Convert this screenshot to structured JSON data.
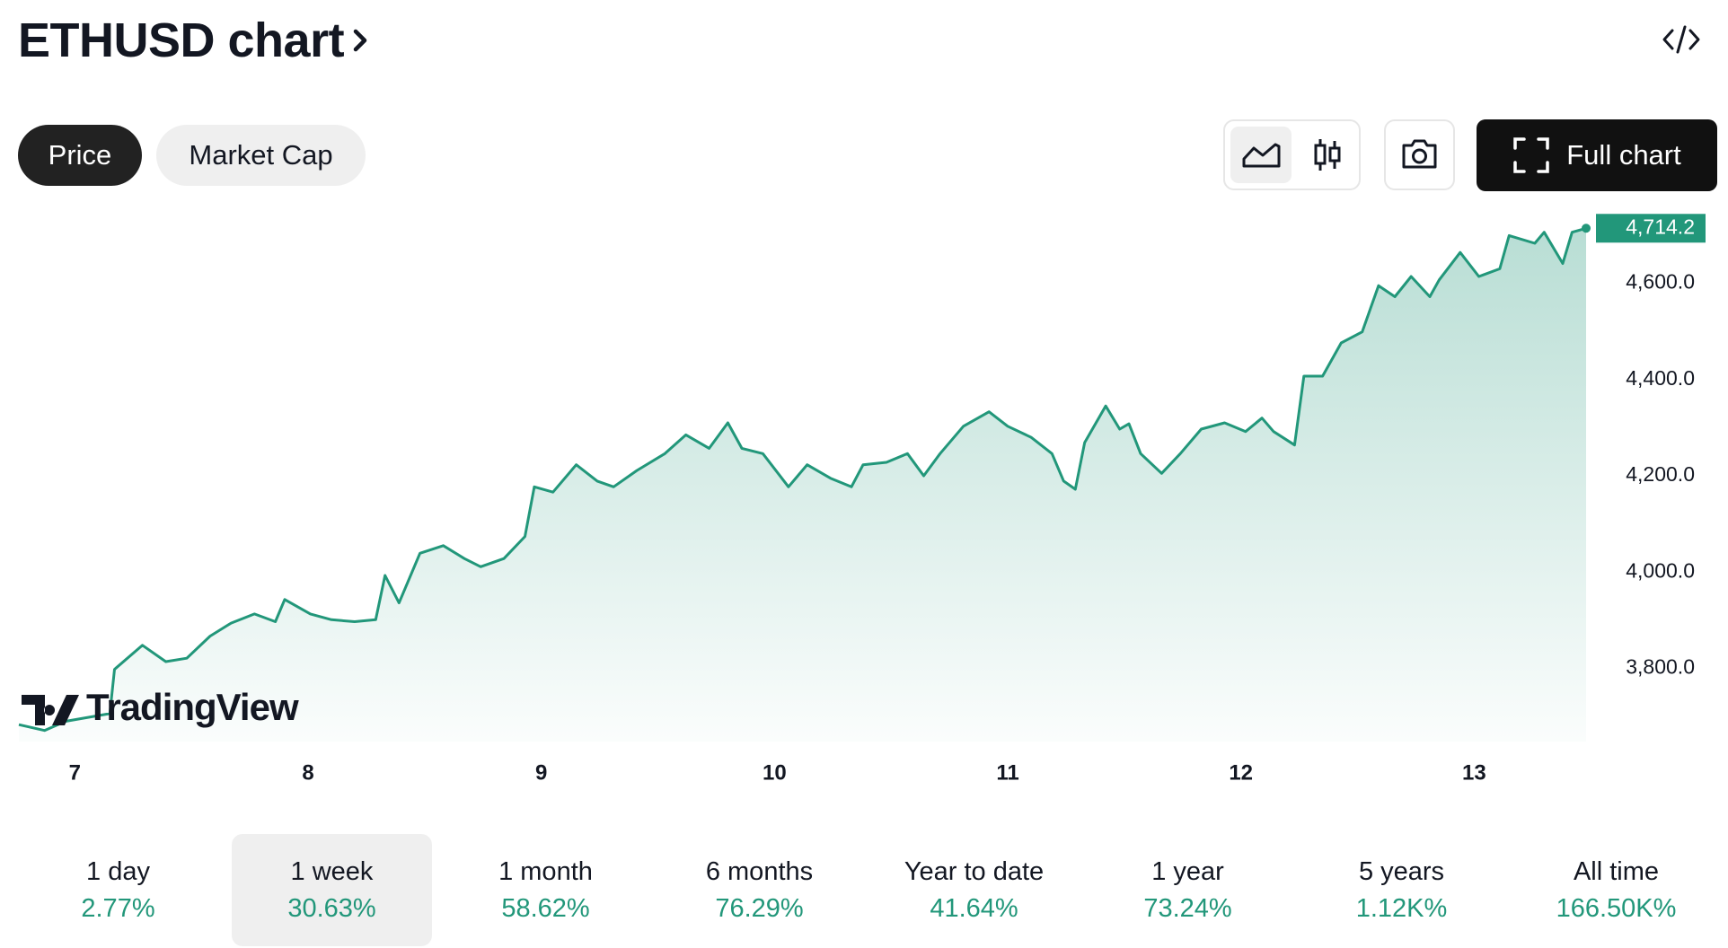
{
  "header": {
    "title": "ETHUSD chart"
  },
  "tabs": [
    "Price",
    "Market Cap"
  ],
  "full_chart": "Full chart",
  "chart_data": {
    "type": "area",
    "watermark": "TradingView",
    "color": "#22977a",
    "x": [
      6.76,
      6.87,
      6.96,
      7.15,
      7.17,
      7.29,
      7.39,
      7.48,
      7.58,
      7.67,
      7.77,
      7.86,
      7.9,
      8.01,
      8.1,
      8.2,
      8.29,
      8.33,
      8.39,
      8.48,
      8.58,
      8.67,
      8.74,
      8.84,
      8.93,
      8.97,
      9.05,
      9.15,
      9.24,
      9.31,
      9.41,
      9.53,
      9.62,
      9.72,
      9.8,
      9.86,
      9.95,
      10.06,
      10.14,
      10.24,
      10.33,
      10.38,
      10.48,
      10.57,
      10.64,
      10.71,
      10.81,
      10.92,
      11.0,
      11.1,
      11.19,
      11.24,
      11.29,
      11.33,
      11.42,
      11.48,
      11.52,
      11.57,
      11.66,
      11.74,
      11.83,
      11.93,
      12.02,
      12.09,
      12.14,
      12.23,
      12.27,
      12.35,
      12.43,
      12.52,
      12.59,
      12.66,
      12.73,
      12.81,
      12.85,
      12.94,
      13.02,
      13.11,
      13.15,
      13.26,
      13.3,
      13.38,
      13.42,
      13.48
    ],
    "values": [
      3683,
      3671,
      3690,
      3706,
      3798,
      3848,
      3814,
      3821,
      3867,
      3894,
      3913,
      3897,
      3943,
      3913,
      3901,
      3897,
      3901,
      3993,
      3936,
      4039,
      4055,
      4028,
      4011,
      4028,
      4074,
      4177,
      4166,
      4223,
      4189,
      4177,
      4211,
      4246,
      4285,
      4257,
      4310,
      4257,
      4246,
      4177,
      4223,
      4195,
      4177,
      4223,
      4228,
      4246,
      4200,
      4246,
      4303,
      4333,
      4303,
      4280,
      4246,
      4189,
      4172,
      4269,
      4345,
      4297,
      4308,
      4246,
      4205,
      4246,
      4297,
      4310,
      4292,
      4320,
      4292,
      4264,
      4407,
      4407,
      4476,
      4499,
      4595,
      4572,
      4614,
      4572,
      4607,
      4664,
      4614,
      4630,
      4699,
      4683,
      4706,
      4641,
      4706,
      4714.2
    ],
    "value_labels": [
      null,
      null,
      null,
      null,
      null,
      null,
      null,
      null,
      null,
      null,
      null,
      null,
      null,
      null,
      null,
      null,
      null,
      null,
      null,
      null,
      null,
      null,
      null,
      null,
      null,
      null,
      null,
      null,
      null,
      null,
      null,
      null,
      null,
      null,
      null,
      null,
      null,
      null,
      null,
      null,
      null,
      null,
      null,
      null,
      null,
      null,
      null,
      null,
      null,
      null,
      null,
      null,
      null,
      null,
      null,
      null,
      null,
      null,
      null,
      null,
      null,
      null,
      null,
      null,
      null,
      null,
      null,
      null,
      null,
      null,
      null,
      null,
      null,
      null,
      null,
      null,
      null,
      null,
      null,
      null,
      null,
      null,
      null,
      "4,714.2"
    ],
    "xlim": [
      6.76,
      13.48
    ],
    "xticks": [
      7,
      8,
      9,
      10,
      11,
      12,
      13
    ],
    "ylim": [
      3648,
      4752
    ],
    "yticks": [
      {
        "value": 3800,
        "label": "3,800.0"
      },
      {
        "value": 4000,
        "label": "4,000.0"
      },
      {
        "value": 4200,
        "label": "4,200.0"
      },
      {
        "value": 4400,
        "label": "4,400.0"
      },
      {
        "value": 4600,
        "label": "4,600.0"
      }
    ],
    "grid": false
  },
  "periods": [
    {
      "label": "1 day",
      "change": "2.77%"
    },
    {
      "label": "1 week",
      "change": "30.63%"
    },
    {
      "label": "1 month",
      "change": "58.62%"
    },
    {
      "label": "6 months",
      "change": "76.29%"
    },
    {
      "label": "Year to date",
      "change": "41.64%"
    },
    {
      "label": "1 year",
      "change": "73.24%"
    },
    {
      "label": "5 years",
      "change": "1.12K%"
    },
    {
      "label": "All time",
      "change": "166.50K%"
    }
  ]
}
